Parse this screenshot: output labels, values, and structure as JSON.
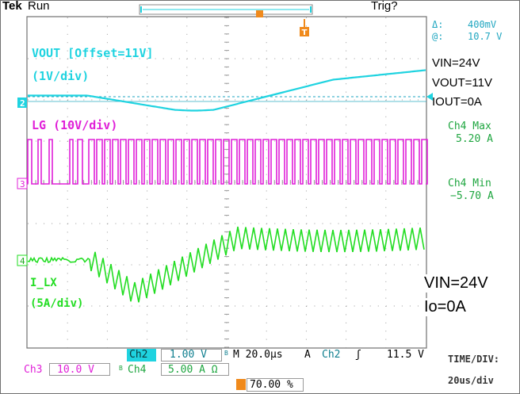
{
  "header": {
    "brand": "Tek",
    "mode": "Run",
    "trigger_status": "Trig?",
    "trigger_marker": "T"
  },
  "cursor_readout": {
    "delta_symbol": "Δ:",
    "delta_value": "400mV",
    "at_symbol": "@:",
    "at_value": "10.7 V"
  },
  "annotations": {
    "cond1": [
      "VIN=24V",
      "VOUT=11V",
      "IOUT=0A"
    ],
    "cond2": [
      "VIN=24V",
      "Io=0A"
    ],
    "timediv_label": "TIME/DIV:",
    "timediv_value": "20us/div"
  },
  "channels": {
    "ch2": {
      "number": "2",
      "label": "VOUT [Offset=11V]",
      "scale": "(1V/div)",
      "color": "#1fd3e0"
    },
    "ch3": {
      "number": "3",
      "label": "LG (10V/div)",
      "color": "#e020d8"
    },
    "ch4": {
      "number": "4",
      "label": "I_LX",
      "scale": "(5A/div)",
      "color": "#22dd22",
      "max_label": "Ch4 Max",
      "max_value": "5.20 A",
      "min_label": "Ch4 Min",
      "min_value": "−5.70 A"
    }
  },
  "status_bar": {
    "ch2_label": "Ch2",
    "ch2_value": "1.00 V",
    "ch2_bw": "B",
    "timebase": "M 20.0µs",
    "acq_mode": "A",
    "trig_source": "Ch2",
    "trig_slope": "ʃ",
    "trig_level": "11.5 V",
    "ch3_label": "Ch3",
    "ch3_value": "10.0 V",
    "ch4_label": "Ch4",
    "ch4_value": "5.00 A Ω",
    "ch4_bw": "B",
    "trig_position": "70.00 %"
  },
  "colors": {
    "grid": "#9a9a9a",
    "cyan_text": "#1fcfd8",
    "status_text": "#0f7f8f"
  }
}
